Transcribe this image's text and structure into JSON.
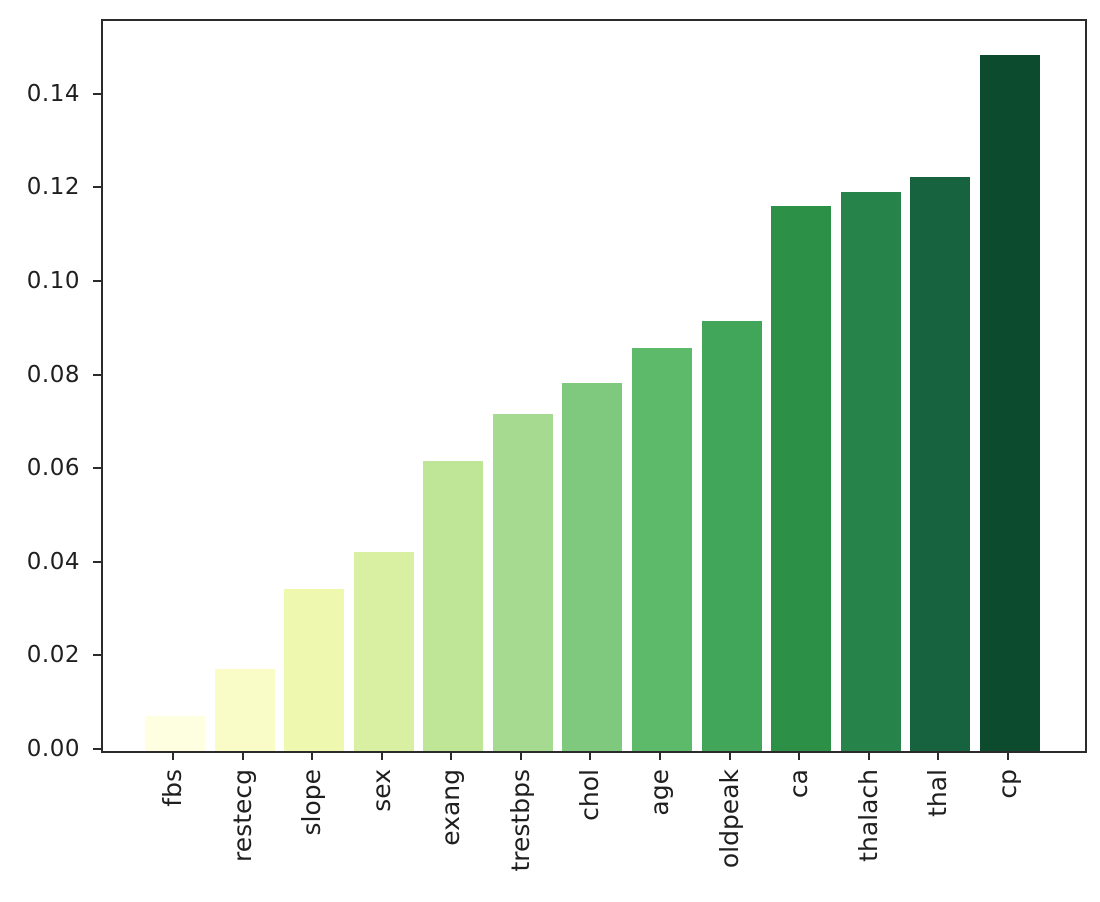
{
  "figure": {
    "background": "#ffffff",
    "axis_color": "#2b2b2b",
    "text_color": "#1f1f1f"
  },
  "chart_data": {
    "type": "bar",
    "title": "",
    "xlabel": "",
    "ylabel": "",
    "legend": false,
    "grid": false,
    "colormap": "YlGn",
    "x_tick_rotation": 90,
    "categories": [
      "fbs",
      "restecg",
      "slope",
      "sex",
      "exang",
      "trestbps",
      "chol",
      "age",
      "oldpeak",
      "ca",
      "thalach",
      "thal",
      "cp"
    ],
    "values": [
      0.0075,
      0.0175,
      0.0347,
      0.0425,
      0.0619,
      0.0721,
      0.0787,
      0.0862,
      0.0919,
      0.1165,
      0.1195,
      0.1227,
      0.1487
    ],
    "bar_colors": [
      "#fefee1",
      "#f9fcc6",
      "#eef8ae",
      "#d9f0a3",
      "#bfe596",
      "#a5da90",
      "#7fc97e",
      "#5dba6b",
      "#42a65a",
      "#2d9047",
      "#26834a",
      "#17623f",
      "#0d4b2e"
    ],
    "yticks": [
      "0.00",
      "0.02",
      "0.04",
      "0.06",
      "0.08",
      "0.10",
      "0.12",
      "0.14"
    ],
    "ylim": [
      0,
      0.156
    ]
  }
}
